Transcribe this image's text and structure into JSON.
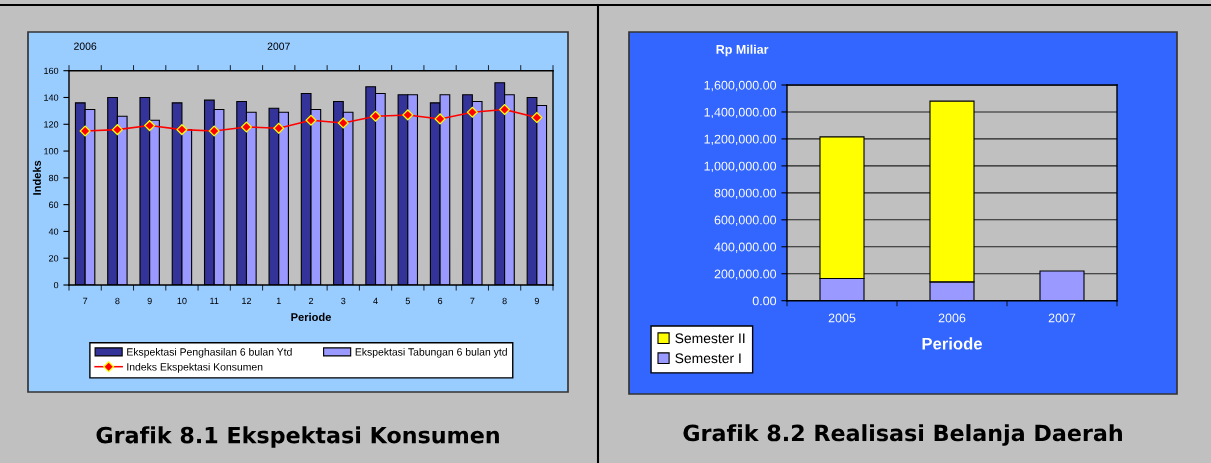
{
  "chart_data": [
    {
      "type": "bar",
      "title": "Grafik 8.1 Ekspektasi Konsumen",
      "xlabel": "Periode",
      "ylabel": "Indeks",
      "categories": [
        "7",
        "8",
        "9",
        "10",
        "11",
        "12",
        "1",
        "2",
        "3",
        "4",
        "5",
        "6",
        "7",
        "8",
        "9"
      ],
      "series": [
        {
          "name": "Ekspektasi Penghasilan 6 bulan Ytd",
          "color": "#333399",
          "values": [
            136,
            140,
            140,
            136,
            138,
            137,
            132,
            143,
            137,
            148,
            142,
            136,
            142,
            151,
            140
          ]
        },
        {
          "name": "Ekspektasi Tabungan 6 bulan ytd",
          "color": "#9999ff",
          "values": [
            131,
            126,
            123,
            116,
            131,
            129,
            129,
            131,
            129,
            143,
            142,
            142,
            137,
            142,
            134
          ]
        },
        {
          "name": "Indeks Ekspektasi Konsumen",
          "type": "line",
          "color": "#ff0000",
          "values": [
            115,
            116,
            119,
            116,
            115,
            118,
            117,
            123,
            121,
            126,
            127,
            124,
            129,
            131,
            125
          ]
        }
      ],
      "marker": "diamond",
      "ylim": [
        0,
        160
      ],
      "yticks": [
        0,
        20,
        40,
        60,
        80,
        100,
        120,
        140,
        160
      ],
      "grid": false,
      "legend": "bottom",
      "annotations": [
        "2006",
        "2007"
      ]
    },
    {
      "type": "bar",
      "stacked": true,
      "title": "Grafik 8.2 Realisasi Belanja Daerah",
      "xlabel": "Periode",
      "ylabel": "Rp Miliar",
      "categories": [
        "2005",
        "2006",
        "2007"
      ],
      "series": [
        {
          "name": "Semester I",
          "color": "#9999ff",
          "values": [
            165000,
            140000,
            220000
          ]
        },
        {
          "name": "Semester II",
          "color": "#ffff00",
          "values": [
            1050000,
            1340000,
            null
          ]
        }
      ],
      "ylim": [
        0,
        1600000
      ],
      "yticks": [
        {
          "value": 0,
          "label": "0.00"
        },
        {
          "value": 200000,
          "label": "200,000.00"
        },
        {
          "value": 400000,
          "label": "400,000.00"
        },
        {
          "value": 600000,
          "label": "600,000.00"
        },
        {
          "value": 800000,
          "label": "800,000.00"
        },
        {
          "value": 1000000,
          "label": "1,000,000.00"
        },
        {
          "value": 1200000,
          "label": "1,200,000.00"
        },
        {
          "value": 1400000,
          "label": "1,400,000.00"
        },
        {
          "value": 1600000,
          "label": "1,600,000.00"
        }
      ],
      "grid": "y",
      "legend": "bottom left"
    }
  ]
}
